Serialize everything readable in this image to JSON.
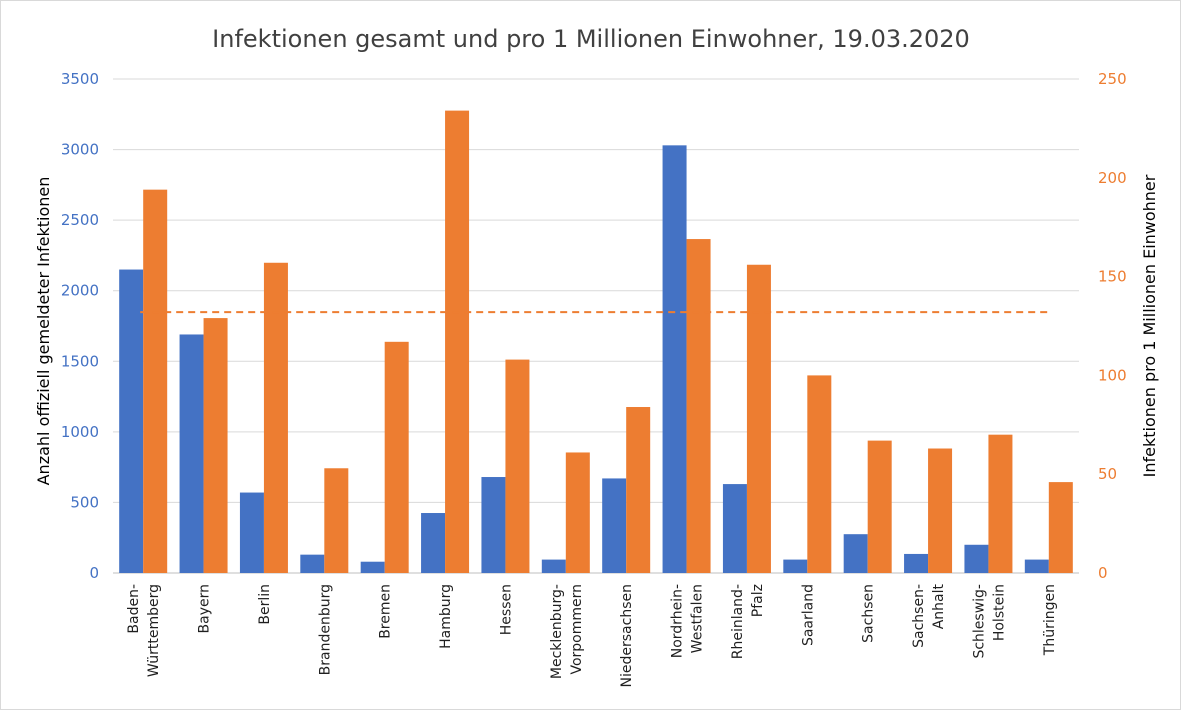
{
  "chart_data": {
    "type": "bar",
    "title": "Infektionen gesamt und pro 1 Millionen Einwohner, 19.03.2020",
    "categories": [
      [
        "Baden-",
        "Württemberg"
      ],
      [
        "Bayern"
      ],
      [
        "Berlin"
      ],
      [
        "Brandenburg"
      ],
      [
        "Bremen"
      ],
      [
        "Hamburg"
      ],
      [
        "Hessen"
      ],
      [
        "Mecklenburg-",
        "Vorpommern"
      ],
      [
        "Niedersachsen"
      ],
      [
        "Nordrhein-",
        "Westfalen"
      ],
      [
        "Rheinland-",
        "Pfalz"
      ],
      [
        "Saarland"
      ],
      [
        "Sachsen"
      ],
      [
        "Sachsen-",
        "Anhalt"
      ],
      [
        "Schleswig-",
        "Holstein"
      ],
      [
        "Thüringen"
      ]
    ],
    "series": [
      {
        "axis": "left",
        "color": "#4472C4",
        "values": [
          2150,
          1690,
          570,
          130,
          80,
          425,
          680,
          95,
          670,
          3030,
          630,
          95,
          275,
          135,
          200,
          95
        ]
      },
      {
        "axis": "right",
        "color": "#ED7D31",
        "values": [
          194,
          129,
          157,
          53,
          117,
          234,
          108,
          61,
          84,
          169,
          156,
          100,
          67,
          63,
          70,
          46
        ]
      }
    ],
    "reference_line": {
      "axis": "right",
      "value": 132,
      "color": "#ED7D31",
      "style": "dashed"
    },
    "y_left": {
      "label": "Anzahl offiziell gemeldeter Infektionen",
      "range": [
        0,
        3500
      ],
      "ticks": [
        "0",
        "500",
        "1000",
        "1500",
        "2000",
        "2500",
        "3000",
        "3500"
      ],
      "color": "#4472C4"
    },
    "y_right": {
      "label": "Infektionen pro 1 Millionen Einwohner",
      "range": [
        0,
        250
      ],
      "ticks": [
        "0",
        "50",
        "100",
        "150",
        "200",
        "250"
      ],
      "color": "#ED7D31"
    },
    "grid": true,
    "legend": "none"
  }
}
